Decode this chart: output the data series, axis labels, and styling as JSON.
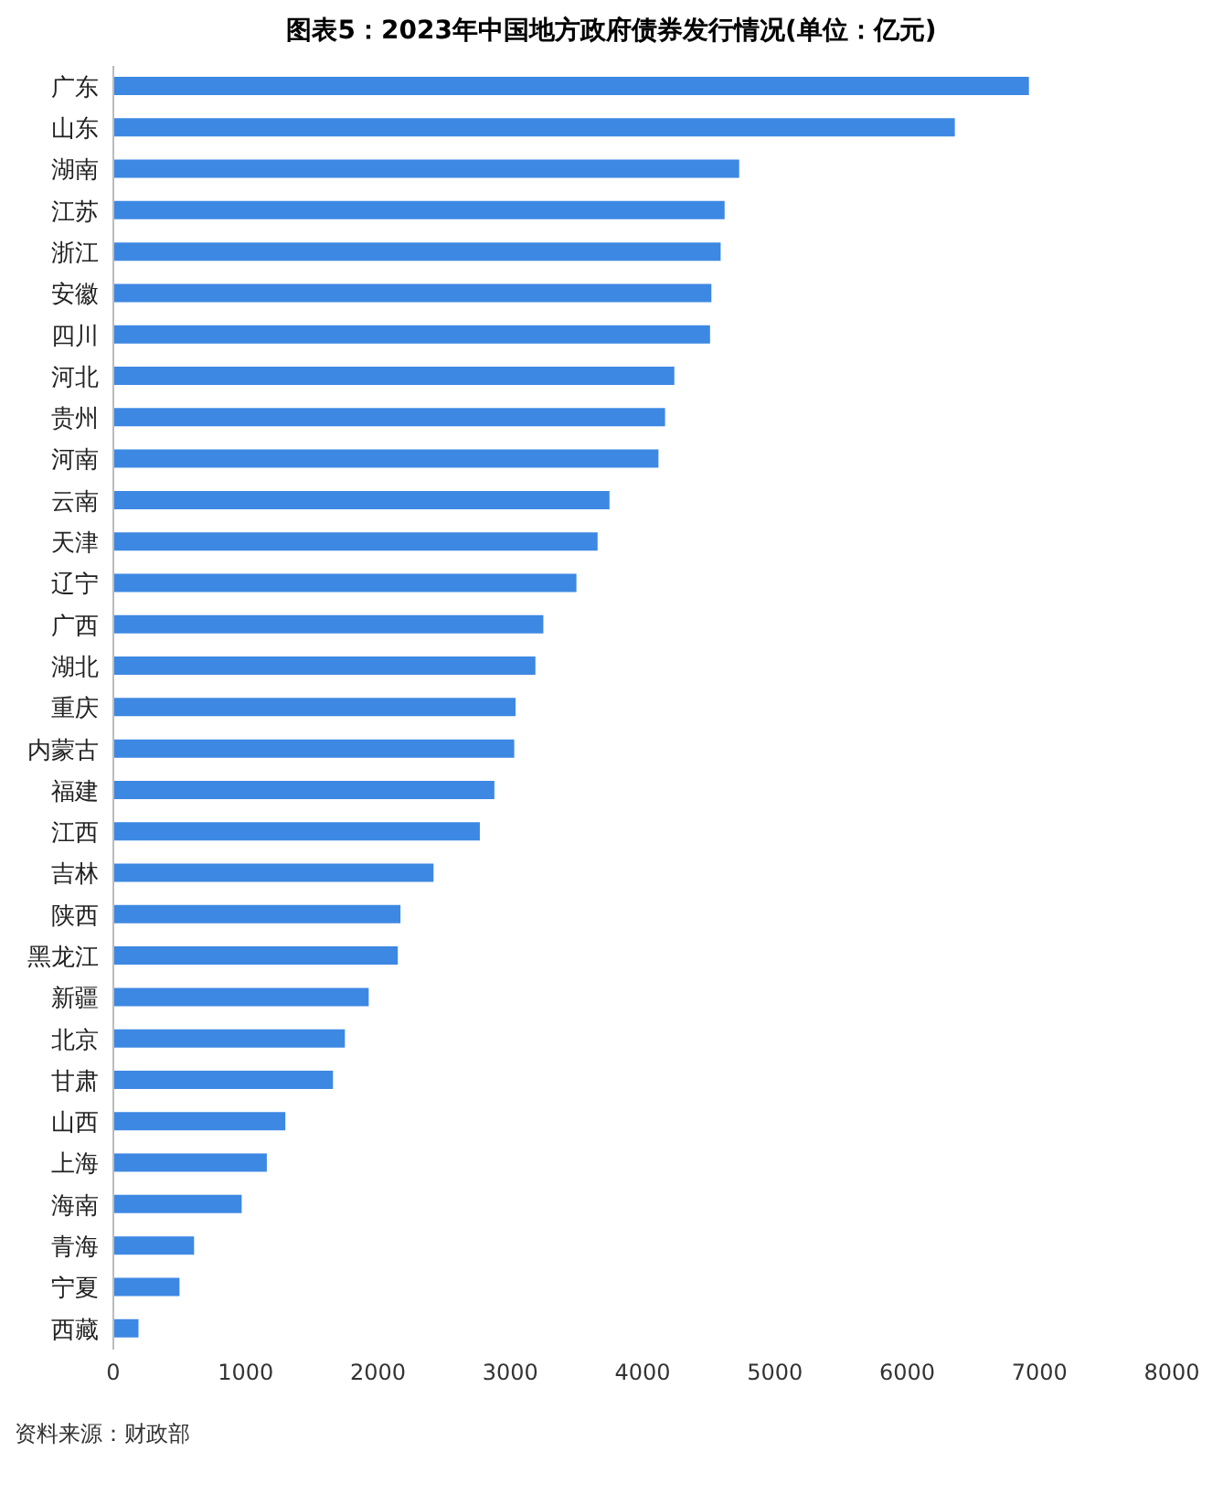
{
  "chart_data": {
    "type": "bar",
    "orientation": "horizontal",
    "title": "图表5：2023年中国地方政府债券发行情况(单位：亿元)",
    "categories": [
      "广东",
      "山东",
      "湖南",
      "江苏",
      "浙江",
      "安徽",
      "四川",
      "河北",
      "贵州",
      "河南",
      "云南",
      "天津",
      "辽宁",
      "广西",
      "湖北",
      "重庆",
      "内蒙古",
      "福建",
      "江西",
      "吉林",
      "陕西",
      "黑龙江",
      "新疆",
      "北京",
      "甘肃",
      "山西",
      "上海",
      "海南",
      "青海",
      "宁夏",
      "西藏"
    ],
    "values": [
      6920,
      6360,
      4730,
      4620,
      4590,
      4520,
      4510,
      4240,
      4170,
      4120,
      3750,
      3660,
      3500,
      3250,
      3190,
      3040,
      3030,
      2880,
      2770,
      2420,
      2170,
      2150,
      1930,
      1750,
      1660,
      1300,
      1160,
      970,
      610,
      500,
      190
    ],
    "color": "#3d88e2",
    "xlim": [
      0,
      8000
    ],
    "xticks": [
      0,
      1000,
      2000,
      3000,
      4000,
      5000,
      6000,
      7000,
      8000
    ],
    "grid": false,
    "legend": false,
    "annotations": [
      "资料来源：财政部"
    ]
  }
}
